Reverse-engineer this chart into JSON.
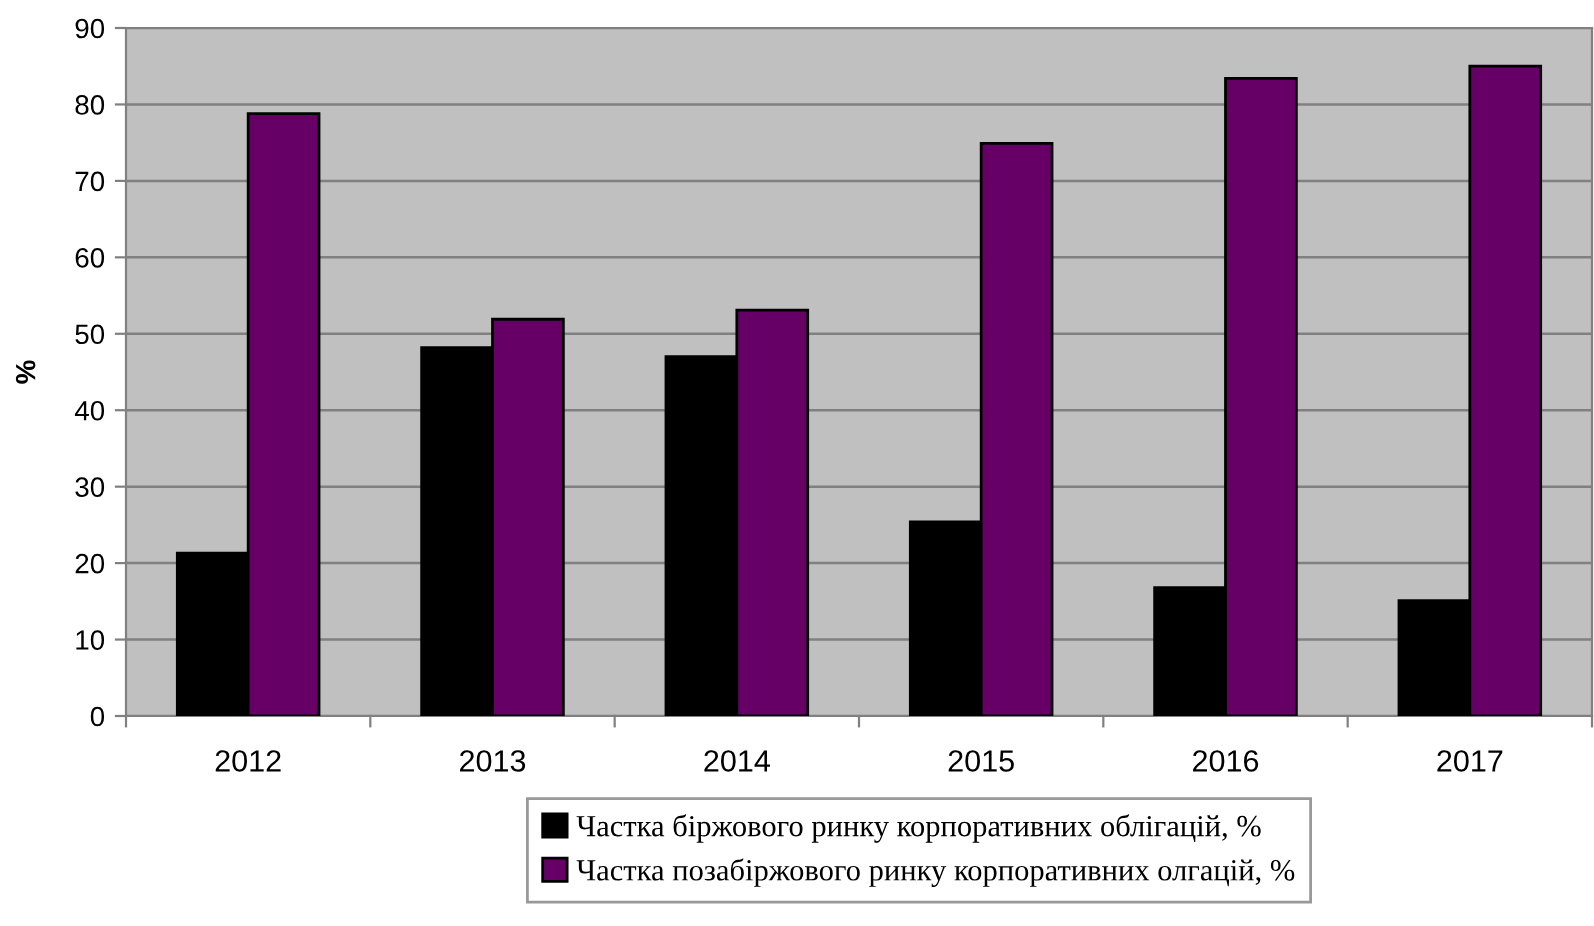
{
  "chart_data": {
    "type": "bar",
    "ylabel": "%",
    "categories": [
      "2012",
      "2013",
      "2014",
      "2015",
      "2016",
      "2017"
    ],
    "series": [
      {
        "name": "Частка біржового ринку корпоративних облігацій, %",
        "color": "#000000",
        "values": [
          21.3,
          48.2,
          47,
          25.4,
          16.8,
          15.1
        ]
      },
      {
        "name": "Частка позабіржового ринку корпоративних олгацій, %",
        "color": "#660066",
        "values": [
          78.8,
          51.9,
          53.1,
          74.9,
          83.4,
          85
        ]
      }
    ],
    "ylim": [
      0,
      90
    ],
    "yticks": [
      0,
      10,
      20,
      30,
      40,
      50,
      60,
      70,
      80,
      90
    ],
    "grid": "y",
    "legend": "bottom"
  }
}
